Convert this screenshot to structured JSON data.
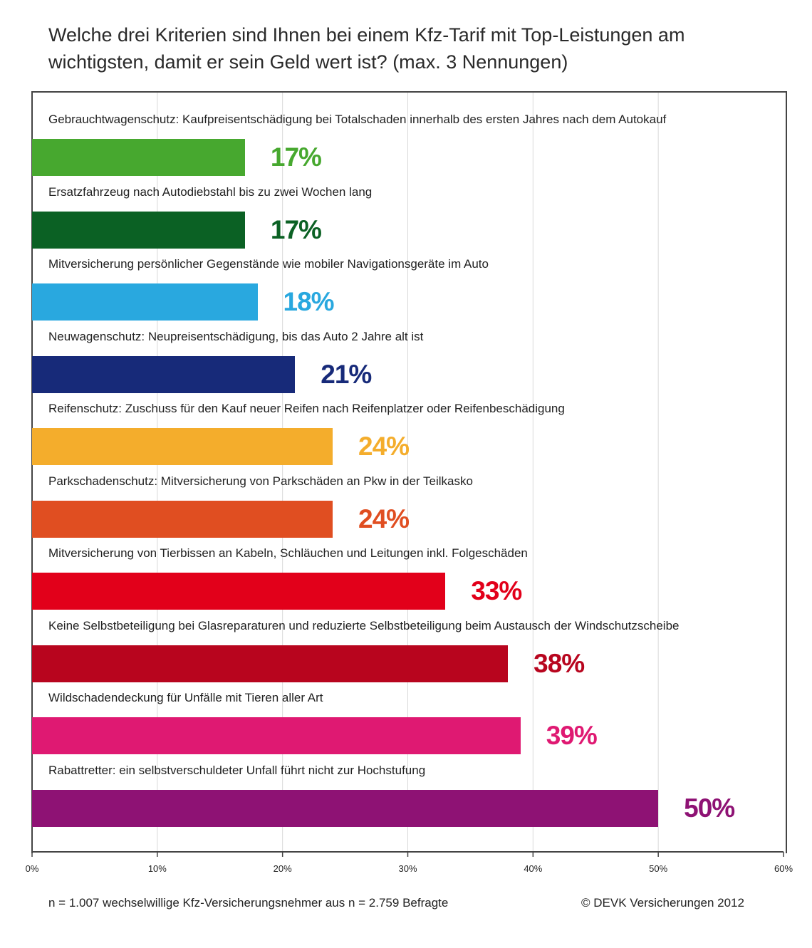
{
  "chart_data": {
    "type": "bar",
    "orientation": "horizontal",
    "title": "Welche drei Kriterien sind Ihnen bei einem Kfz-Tarif mit Top-Leistungen am wichtigsten, damit er sein Geld wert ist? (max. 3 Nennungen)",
    "categories": [
      "Gebrauchtwagenschutz: Kaufpreisentschädigung bei Totalschaden innerhalb des ersten Jahres nach dem Autokauf",
      "Ersatzfahrzeug nach Autodiebstahl bis zu zwei Wochen lang",
      "Mitversicherung persönlicher Gegenstände wie mobiler Navigationsgeräte im Auto",
      "Neuwagenschutz: Neupreisentschädigung, bis das Auto 2 Jahre alt ist",
      "Reifenschutz: Zuschuss für den Kauf neuer Reifen nach Reifenplatzer oder Reifenbeschädigung",
      "Parkschadenschutz: Mitversicherung von Parkschäden an Pkw in der Teilkasko",
      "Mitversicherung von Tierbissen an Kabeln, Schläuchen und Leitungen inkl. Folgeschäden",
      "Keine Selbstbeteiligung bei Glasreparaturen und reduzierte Selbstbeteiligung beim Austausch der Windschutzscheibe",
      "Wildschadendeckung für Unfälle mit Tieren aller Art",
      "Rabattretter: ein selbstverschuldeter Unfall führt nicht zur Hochstufung"
    ],
    "values": [
      17,
      17,
      18,
      21,
      24,
      24,
      33,
      38,
      39,
      50
    ],
    "value_labels": [
      "17%",
      "17%",
      "18%",
      "21%",
      "24%",
      "24%",
      "33%",
      "38%",
      "39%",
      "50%"
    ],
    "colors": [
      "#47a82f",
      "#0b6124",
      "#29a8df",
      "#172a79",
      "#f4ad2c",
      "#e04e21",
      "#e2001a",
      "#b8051e",
      "#df1972",
      "#8e1274"
    ],
    "xlim": [
      0,
      60
    ],
    "x_ticks": [
      0,
      10,
      20,
      30,
      40,
      50,
      60
    ],
    "x_tick_labels": [
      "0%",
      "10%",
      "20%",
      "30%",
      "40%",
      "50%",
      "60%"
    ],
    "grid": true
  },
  "footer": {
    "sample_note": "n = 1.007 wechselwillige Kfz-Versicherungsnehmer aus n = 2.759 Befragte",
    "copyright": "© DEVK Versicherungen 2012"
  }
}
